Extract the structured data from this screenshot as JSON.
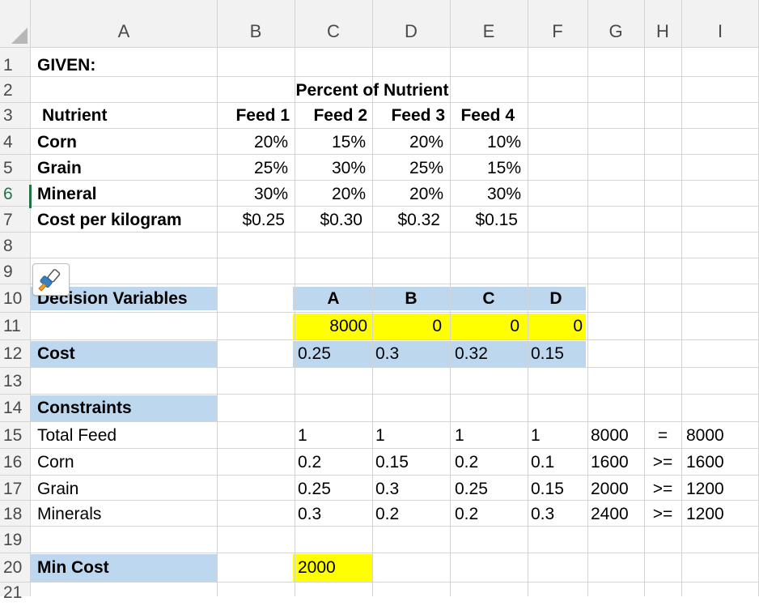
{
  "columns": [
    "A",
    "B",
    "C",
    "D",
    "E",
    "F",
    "G",
    "H",
    "I"
  ],
  "rows": [
    "1",
    "2",
    "3",
    "4",
    "5",
    "6",
    "7",
    "8",
    "9",
    "10",
    "11",
    "12",
    "13",
    "14",
    "15",
    "16",
    "17",
    "18",
    "19",
    "20",
    "21"
  ],
  "given": {
    "title": "GIVEN:",
    "header": "Percent of Nutrient",
    "nutrient_label": "Nutrient",
    "feeds": [
      "Feed 1",
      "Feed 2",
      "Feed 3",
      "Feed 4"
    ],
    "items": [
      {
        "name": "Corn",
        "values": [
          "20%",
          "15%",
          "20%",
          "10%"
        ]
      },
      {
        "name": "Grain",
        "values": [
          "25%",
          "30%",
          "25%",
          "15%"
        ]
      },
      {
        "name": "Mineral",
        "values": [
          "30%",
          "20%",
          "20%",
          "30%"
        ]
      },
      {
        "name": "Cost per kilogram",
        "values": [
          "$0.25",
          "$0.30",
          "$0.32",
          "$0.15"
        ]
      }
    ]
  },
  "decision": {
    "label": "Decision Variables",
    "vars": [
      "A",
      "B",
      "C",
      "D"
    ],
    "values": [
      "8000",
      "0",
      "0",
      "0"
    ],
    "cost_label": "Cost",
    "costs": [
      "0.25",
      "0.3",
      "0.32",
      "0.15"
    ]
  },
  "constraints": {
    "label": "Constraints",
    "rows": [
      {
        "name": "Total Feed",
        "coef": [
          "1",
          "1",
          "1",
          "1"
        ],
        "lhs": "8000",
        "op": "=",
        "rhs": "8000"
      },
      {
        "name": "Corn",
        "coef": [
          "0.2",
          "0.15",
          "0.2",
          "0.1"
        ],
        "lhs": "1600",
        "op": ">=",
        "rhs": "1600"
      },
      {
        "name": "Grain",
        "coef": [
          "0.25",
          "0.3",
          "0.25",
          "0.15"
        ],
        "lhs": "2000",
        "op": ">=",
        "rhs": "1200"
      },
      {
        "name": "Minerals",
        "coef": [
          "0.3",
          "0.2",
          "0.2",
          "0.3"
        ],
        "lhs": "2400",
        "op": ">=",
        "rhs": "1200"
      }
    ]
  },
  "min_cost": {
    "label": "Min Cost",
    "value": "2000"
  },
  "colors": {
    "blue_fill": "#bdd7ee",
    "yellow_fill": "#ffff00",
    "active_row": "#217346"
  },
  "icons": {
    "format_painter": "paintbrush-icon"
  }
}
